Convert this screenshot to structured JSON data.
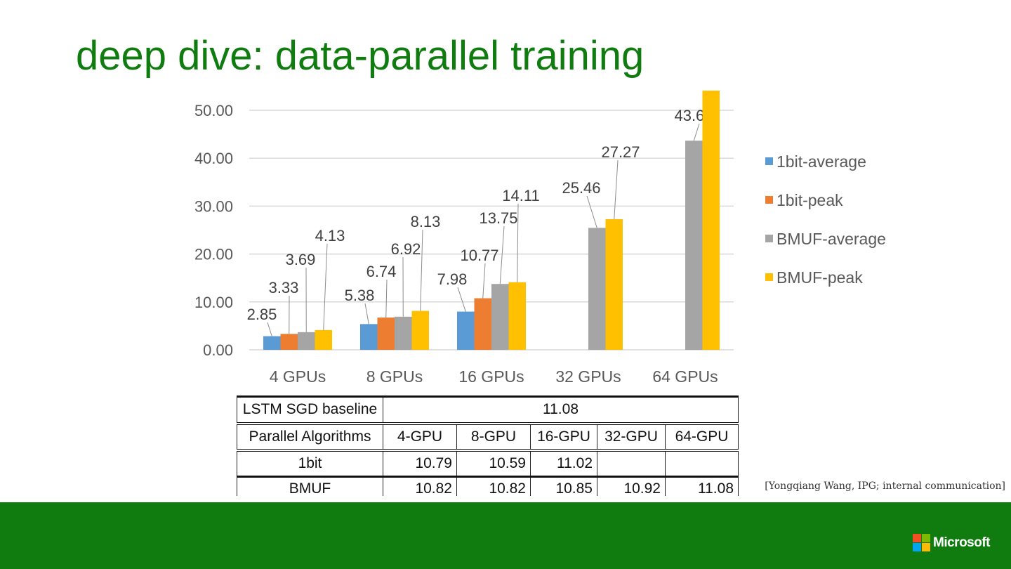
{
  "slide": {
    "title": "deep dive: data-parallel training",
    "citation": "[Yongqiang Wang, IPG; internal communication]",
    "logo_text": "Microsoft"
  },
  "chart_data": {
    "type": "bar",
    "categories": [
      "4 GPUs",
      "8 GPUs",
      "16 GPUs",
      "32 GPUs",
      "64 GPUs"
    ],
    "ylim": [
      0,
      50
    ],
    "yticks": [
      "0.00",
      "10.00",
      "20.00",
      "30.00",
      "40.00",
      "50.00"
    ],
    "grid": true,
    "legend_position": "right",
    "series": [
      {
        "name": "1bit-average",
        "color": "#5b9bd5",
        "values": [
          2.85,
          5.38,
          7.98,
          null,
          null
        ],
        "labels": [
          "2.85",
          "5.38",
          "7.98",
          null,
          null
        ]
      },
      {
        "name": "1bit-peak",
        "color": "#ed7d31",
        "values": [
          3.33,
          6.74,
          10.77,
          null,
          null
        ],
        "labels": [
          "3.33",
          "6.74",
          "10.77",
          null,
          null
        ]
      },
      {
        "name": "BMUF-average",
        "color": "#a5a5a5",
        "values": [
          3.69,
          6.92,
          13.75,
          25.46,
          43.65
        ],
        "labels": [
          "3.69",
          "6.92",
          "13.75",
          "25.46",
          "43.65"
        ]
      },
      {
        "name": "BMUF-peak",
        "color": "#ffc000",
        "values": [
          4.13,
          8.13,
          14.11,
          27.27,
          54.1
        ],
        "labels": [
          "4.13",
          "8.13",
          "14.11",
          "27.27",
          null
        ]
      }
    ]
  },
  "table": {
    "baseline_label": "LSTM SGD baseline",
    "baseline_value": "11.08",
    "header": [
      "Parallel Algorithms",
      "4-GPU",
      "8-GPU",
      "16-GPU",
      "32-GPU",
      "64-GPU"
    ],
    "rows": [
      [
        "1bit",
        "10.79",
        "10.59",
        "11.02",
        "",
        ""
      ],
      [
        "BMUF",
        "10.82",
        "10.82",
        "10.85",
        "10.92",
        "11.08"
      ]
    ]
  },
  "colors": {
    "brand_green": "#107c10"
  }
}
